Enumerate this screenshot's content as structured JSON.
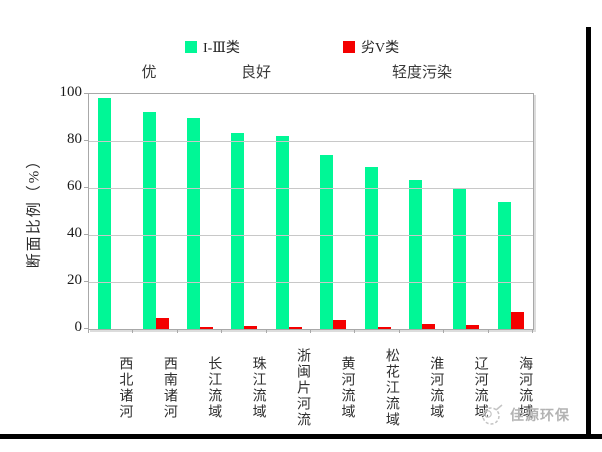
{
  "legend": {
    "items": [
      {
        "label": "I-Ⅲ类",
        "color": "#00f796"
      },
      {
        "label": "劣V类",
        "color": "#f40000"
      }
    ]
  },
  "zones": [
    {
      "label": "优"
    },
    {
      "label": "良好"
    },
    {
      "label": "轻度污染"
    }
  ],
  "y_axis": {
    "title": "断面比例（%）",
    "tick_values": [
      0,
      20,
      40,
      60,
      80,
      100
    ]
  },
  "chart_data": {
    "type": "bar",
    "categories": [
      "西北诸河",
      "西南诸河",
      "长江流域",
      "珠江流域",
      "浙闽片河流",
      "黄河流域",
      "松花江流域",
      "淮河流域",
      "辽河流域",
      "海河流域"
    ],
    "series": [
      {
        "name": "I-Ⅲ类",
        "color": "#00f796",
        "values": [
          98.5,
          92.5,
          90,
          83.5,
          82,
          74,
          69,
          63.5,
          60,
          54
        ]
      },
      {
        "name": "劣V类",
        "color": "#f40000",
        "values": [
          0,
          4.5,
          0.8,
          1.2,
          0.8,
          3.8,
          0.8,
          2.2,
          1.8,
          7.2
        ]
      }
    ],
    "title": "",
    "xlabel": "",
    "ylabel": "断面比例（%）",
    "ylim": [
      0,
      100
    ],
    "grid": true,
    "legend_position": "top",
    "annotations": [
      "优",
      "良好",
      "轻度污染"
    ]
  },
  "watermark": {
    "text": "佳源环保"
  },
  "colors": {
    "grid": "#c8c8c8",
    "plot_border": "#a8a8a8",
    "frame": "#000000",
    "text": "#1a1a1a",
    "watermark": "#b3b3b3"
  }
}
